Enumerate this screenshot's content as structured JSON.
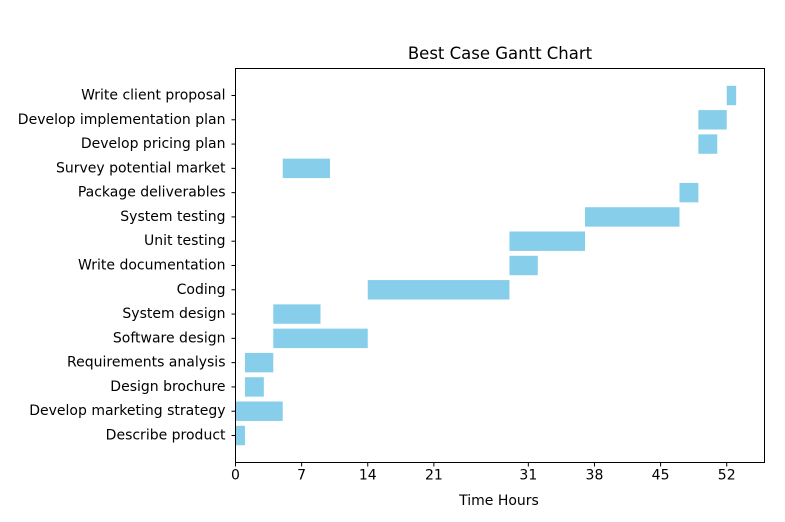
{
  "chart_data": {
    "type": "bar",
    "orientation": "horizontal",
    "subtype": "gantt",
    "title": "Best Case Gantt Chart",
    "xlabel": "Time Hours",
    "ylabel": "",
    "xlim": [
      0,
      56
    ],
    "xticks": [
      0,
      7,
      14,
      21,
      31,
      38,
      45,
      52
    ],
    "bar_color": "#87ceeb",
    "grid": false,
    "tasks": [
      {
        "name": "Describe product",
        "start": 0,
        "end": 1
      },
      {
        "name": "Develop marketing strategy",
        "start": 0,
        "end": 5
      },
      {
        "name": "Design brochure",
        "start": 1,
        "end": 3
      },
      {
        "name": "Requirements analysis",
        "start": 1,
        "end": 4
      },
      {
        "name": "Software design",
        "start": 4,
        "end": 14
      },
      {
        "name": "System design",
        "start": 4,
        "end": 9
      },
      {
        "name": "Coding",
        "start": 14,
        "end": 29
      },
      {
        "name": "Write documentation",
        "start": 29,
        "end": 32
      },
      {
        "name": "Unit testing",
        "start": 29,
        "end": 37
      },
      {
        "name": "System testing",
        "start": 37,
        "end": 47
      },
      {
        "name": "Package deliverables",
        "start": 47,
        "end": 49
      },
      {
        "name": "Survey potential market",
        "start": 5,
        "end": 10
      },
      {
        "name": "Develop pricing plan",
        "start": 49,
        "end": 51
      },
      {
        "name": "Develop implementation plan",
        "start": 49,
        "end": 52
      },
      {
        "name": "Write client proposal",
        "start": 52,
        "end": 53
      }
    ]
  }
}
